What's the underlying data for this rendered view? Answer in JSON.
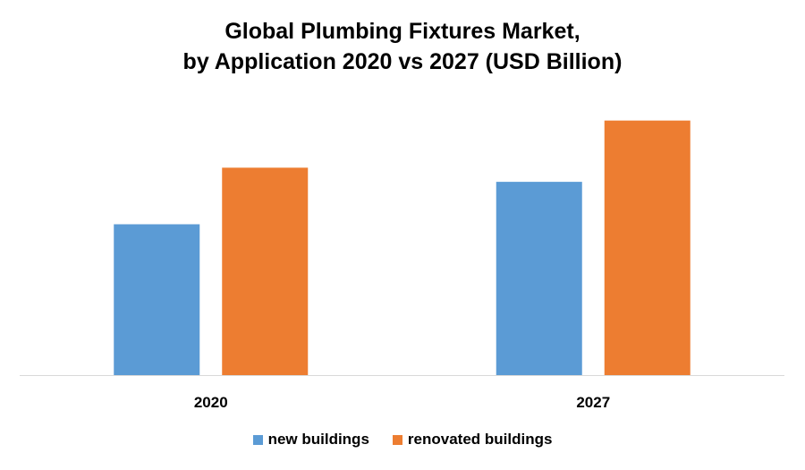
{
  "chart_data": {
    "type": "bar",
    "title": "Global Plumbing Fixtures Market,",
    "subtitle": "by Application 2020 vs 2027 (USD Billion)",
    "categories": [
      "2020",
      "2027"
    ],
    "series": [
      {
        "name": "new buildings",
        "color": "#5b9bd5",
        "values": [
          32,
          41
        ]
      },
      {
        "name": "renovated buildings",
        "color": "#ed7d31",
        "values": [
          44,
          54
        ]
      }
    ],
    "ylim": [
      0,
      64
    ],
    "grid": false,
    "legend_position": "bottom",
    "xlabel": "",
    "ylabel": ""
  }
}
